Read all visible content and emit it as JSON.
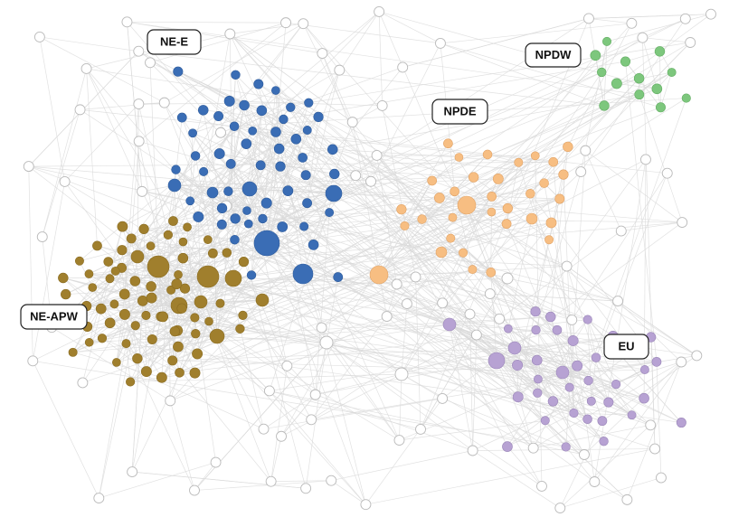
{
  "clusters": [
    {
      "label": "NE-E"
    },
    {
      "label": "NPDW"
    },
    {
      "label": "NPDE"
    },
    {
      "label": "NE-APW"
    },
    {
      "label": "EU"
    }
  ]
}
